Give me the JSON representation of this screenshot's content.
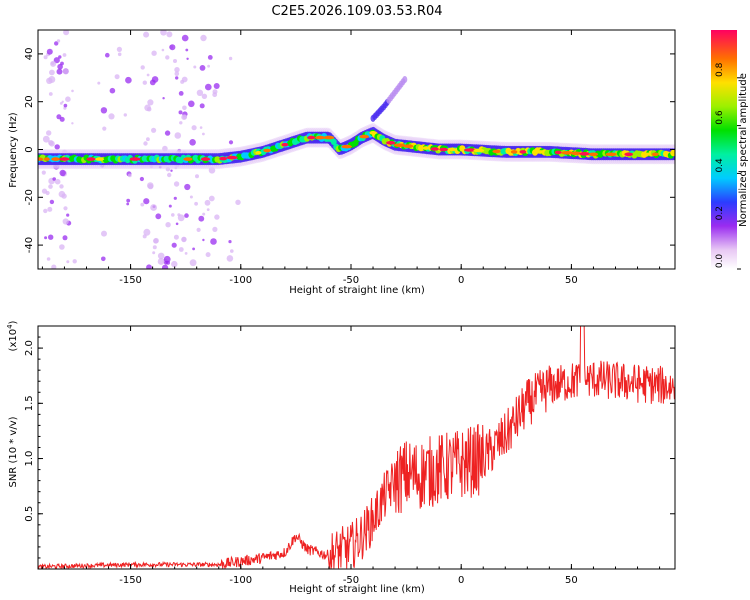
{
  "title": "C2E5.2026.109.03.53.R04",
  "chart_data": [
    {
      "type": "heatmap",
      "name": "spectrum",
      "xlabel": "Height of straight line (km)",
      "ylabel": "Frequency (Hz)",
      "xlim": [
        -192,
        97
      ],
      "ylim": [
        -50,
        50
      ],
      "xticks": [
        -150,
        -100,
        -50,
        0,
        50
      ],
      "xtick_labels": [
        "-150",
        "-100",
        "-50",
        "0",
        "50"
      ],
      "yticks": [
        -40,
        -20,
        0,
        20,
        40
      ],
      "ytick_labels": [
        "-40",
        "-20",
        "0",
        "20",
        "40"
      ],
      "ridge": {
        "x": [
          -190,
          -170,
          -150,
          -130,
          -110,
          -100,
          -90,
          -80,
          -70,
          -60,
          -55,
          -50,
          -45,
          -40,
          -35,
          -30,
          -20,
          -10,
          0,
          20,
          40,
          60,
          80,
          95
        ],
        "y": [
          -4,
          -4,
          -4,
          -4,
          -4,
          -3,
          -1,
          2,
          5,
          5,
          0,
          2,
          5,
          7,
          4,
          2,
          1,
          0,
          0,
          -1,
          -1,
          -2,
          -2,
          -2
        ]
      },
      "branch": {
        "x": [
          -40,
          -35,
          -30,
          -25
        ],
        "y": [
          13,
          18,
          24,
          30
        ]
      },
      "colorbar": {
        "label": "Normalized spectral amplitude",
        "range": [
          0,
          1
        ],
        "ticks": [
          "0.0",
          "0.2",
          "0.4",
          "0.6",
          "0.8"
        ],
        "tick_values": [
          0,
          0.2,
          0.4,
          0.6,
          0.8
        ]
      }
    },
    {
      "type": "line",
      "name": "snr",
      "xlabel": "Height of straight line (km)",
      "ylabel": "SNR (10 * v/v)",
      "exponent_label": "(x10",
      "exponent_power": "4",
      "exponent_close": ")",
      "xlim": [
        -192,
        97
      ],
      "ylim": [
        0,
        2.2
      ],
      "xticks": [
        -150,
        -100,
        -50,
        0,
        50
      ],
      "xtick_labels": [
        "-150",
        "-100",
        "-50",
        "0",
        "50"
      ],
      "yticks": [
        0.5,
        1.0,
        1.5,
        2.0
      ],
      "ytick_labels": [
        "0.5",
        "1.0",
        "1.5",
        "2.0"
      ],
      "color": "#ee2222",
      "trend": {
        "x": [
          -192,
          -150,
          -110,
          -100,
          -90,
          -80,
          -75,
          -70,
          -60,
          -50,
          -45,
          -40,
          -35,
          -30,
          -25,
          -20,
          -10,
          0,
          10,
          20,
          30,
          40,
          50,
          60,
          70,
          80,
          97
        ],
        "y": [
          0.02,
          0.04,
          0.04,
          0.07,
          0.1,
          0.15,
          0.3,
          0.18,
          0.12,
          0.2,
          0.3,
          0.45,
          0.65,
          0.8,
          0.85,
          0.85,
          0.9,
          0.95,
          1.0,
          1.2,
          1.5,
          1.65,
          1.7,
          1.72,
          1.7,
          1.68,
          1.65
        ]
      }
    }
  ]
}
